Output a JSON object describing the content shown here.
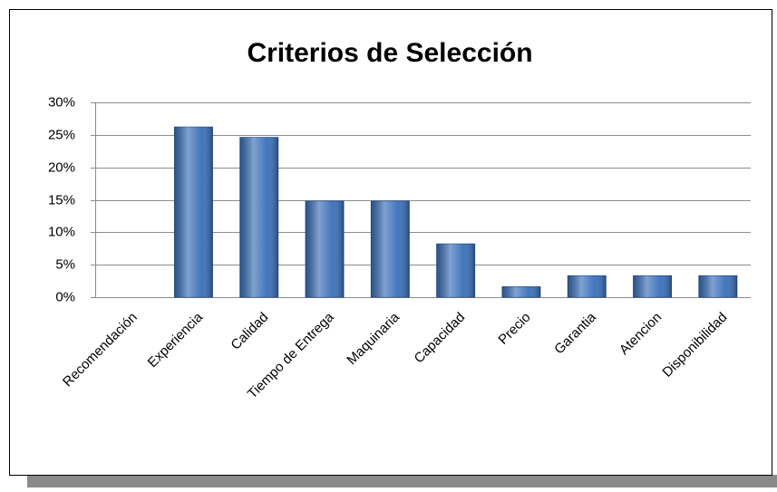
{
  "chart_data": {
    "type": "bar",
    "title": "Criterios de Selección",
    "categories": [
      "Recomendación",
      "Experiencia",
      "Calidad",
      "Tiempo de Entrega",
      "Maquinaria",
      "Capacidad",
      "Precio",
      "Garantia",
      "Atencion",
      "Disponibilidad"
    ],
    "values": [
      0,
      26.2,
      24.6,
      14.8,
      14.8,
      8.2,
      1.6,
      3.3,
      3.3,
      3.3
    ],
    "color": "#3a6fb8",
    "ylim": [
      0,
      30
    ],
    "yticks": [
      {
        "value": 0,
        "label": "0%"
      },
      {
        "value": 5,
        "label": "5%"
      },
      {
        "value": 10,
        "label": "10%"
      },
      {
        "value": 15,
        "label": "15%"
      },
      {
        "value": 20,
        "label": "20%"
      },
      {
        "value": 25,
        "label": "25%"
      },
      {
        "value": 30,
        "label": "30%"
      }
    ],
    "grid": true
  }
}
